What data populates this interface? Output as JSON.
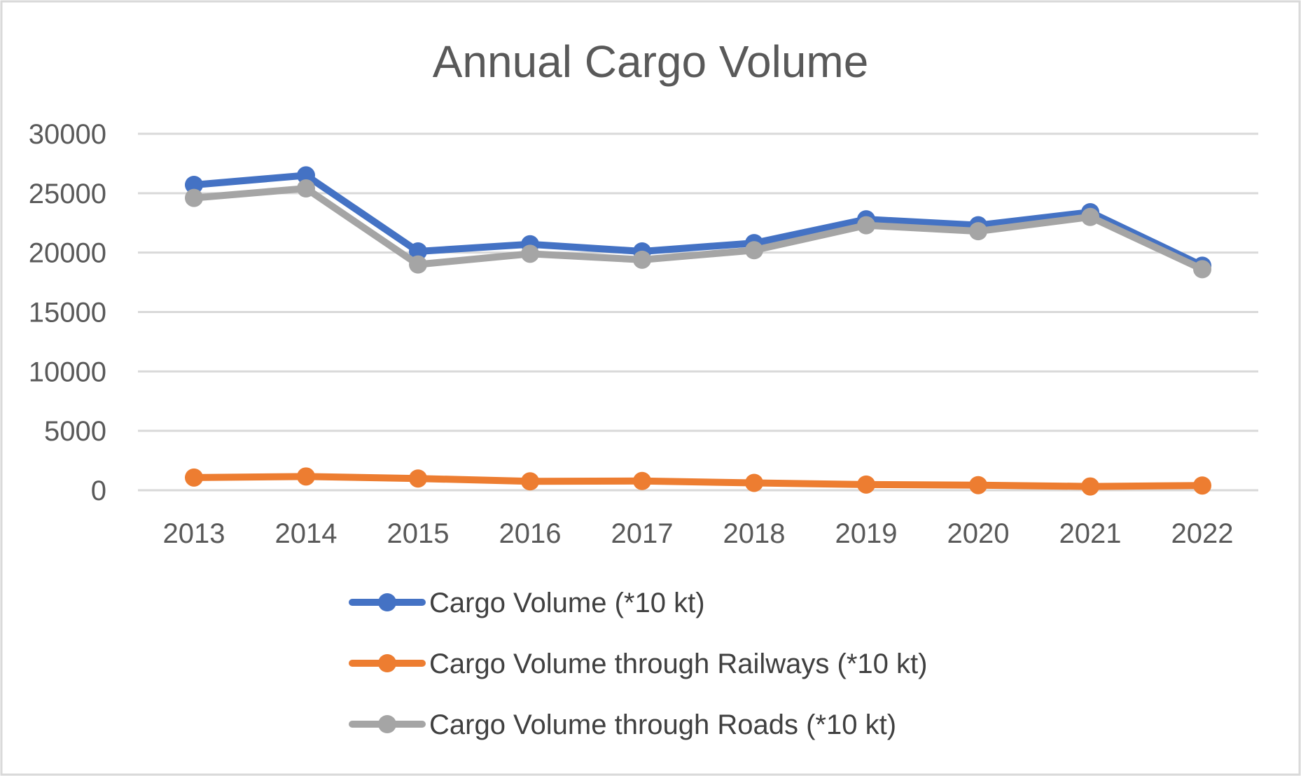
{
  "chart_data": {
    "type": "line",
    "title": "Annual Cargo Volume",
    "xlabel": "",
    "ylabel": "",
    "categories": [
      "2013",
      "2014",
      "2015",
      "2016",
      "2017",
      "2018",
      "2019",
      "2020",
      "2021",
      "2022"
    ],
    "ylim": [
      0,
      30000
    ],
    "yticks": [
      0,
      5000,
      10000,
      15000,
      20000,
      25000,
      30000
    ],
    "ytick_labels": [
      "0",
      "5000",
      "10000",
      "15000",
      "20000",
      "25000",
      "30000"
    ],
    "grid": true,
    "legend_position": "bottom",
    "series": [
      {
        "name": "Cargo Volume (*10 kt)",
        "color": "#4472c4",
        "values": [
          25700,
          26500,
          20100,
          20700,
          20100,
          20800,
          22800,
          22300,
          23400,
          18900
        ]
      },
      {
        "name": "Cargo Volume through Railways (*10 kt)",
        "color": "#ed7d31",
        "values": [
          1070,
          1160,
          990,
          750,
          780,
          620,
          480,
          430,
          320,
          400
        ]
      },
      {
        "name": "Cargo Volume through Roads (*10 kt)",
        "color": "#a5a5a5",
        "values": [
          24600,
          25400,
          19000,
          19900,
          19400,
          20200,
          22300,
          21800,
          23000,
          18600
        ]
      }
    ]
  }
}
